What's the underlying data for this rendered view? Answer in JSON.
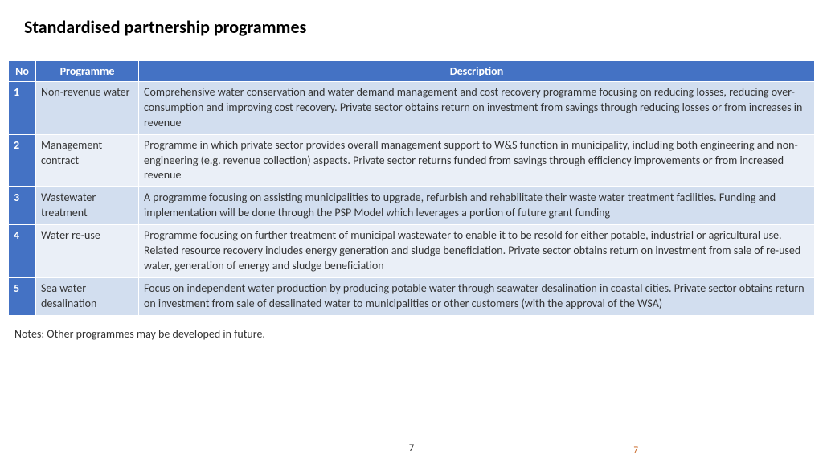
{
  "title": "Standardised partnership programmes",
  "table": {
    "headers": {
      "no": "No",
      "programme": "Programme",
      "description": "Description"
    },
    "rows": [
      {
        "no": "1",
        "programme": "Non-revenue water",
        "description": "Comprehensive water conservation and water demand management and cost recovery programme focusing on reducing losses, reducing over-consumption and improving cost recovery. Private sector obtains return on investment from savings through reducing losses or from increases in revenue"
      },
      {
        "no": "2",
        "programme": "Management contract",
        "description": "Programme in which private sector provides overall management support to W&S function in municipality, including both engineering and non-engineering (e.g. revenue collection) aspects. Private sector returns funded from savings through efficiency improvements or from increased revenue"
      },
      {
        "no": "3",
        "programme": "Wastewater treatment",
        "description": "A programme focusing on assisting municipalities to upgrade, refurbish and rehabilitate their waste water treatment facilities. Funding and implementation will be done through the PSP Model which leverages a portion of future grant funding"
      },
      {
        "no": "4",
        "programme": "Water re-use",
        "description": "Programme focusing on further treatment of municipal wastewater to enable it to be resold for either potable, industrial or agricultural use. Related resource recovery includes energy generation and sludge beneficiation. Private sector obtains return on investment from sale of re-used water, generation of energy and sludge beneficiation"
      },
      {
        "no": "5",
        "programme": "Sea water desalination",
        "description": "Focus on independent water production by producing potable water through seawater desalination in coastal cities. Private sector obtains return on investment from sale of desalinated water to municipalities or other customers (with the approval of the WSA)"
      }
    ]
  },
  "notes": "Notes: Other programmes may be developed in future.",
  "page_number_main": "7",
  "page_number_accent": "7",
  "colors": {
    "header_bg": "#4472c4",
    "row_odd_bg": "#d2deef",
    "row_even_bg": "#eaeff7",
    "accent_text": "#c55a11"
  }
}
